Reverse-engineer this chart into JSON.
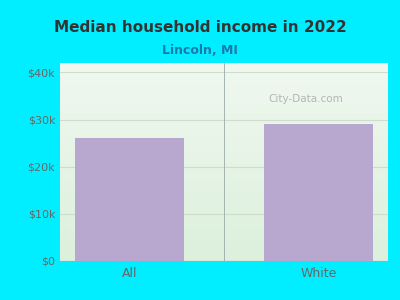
{
  "title": "Median household income in 2022",
  "subtitle": "Lincoln, MI",
  "categories": [
    "All",
    "White"
  ],
  "values": [
    26000,
    29000
  ],
  "bar_color": "#b8a8d0",
  "ylim": [
    0,
    42000
  ],
  "yticks": [
    0,
    10000,
    20000,
    30000,
    40000
  ],
  "ytick_labels": [
    "$0",
    "$10k",
    "$20k",
    "$30k",
    "$40k"
  ],
  "bg_color": "#00eeff",
  "title_color": "#333333",
  "subtitle_color": "#1a7aaa",
  "tick_color": "#666666",
  "watermark_text": "City-Data.com",
  "watermark_color": "#aaaaaa",
  "grid_color": "#ccddcc",
  "xaxis_line_color": "#00eeff",
  "plot_bg_top": "#f0f0f0",
  "plot_bg_bottom": "#e0f0dc"
}
